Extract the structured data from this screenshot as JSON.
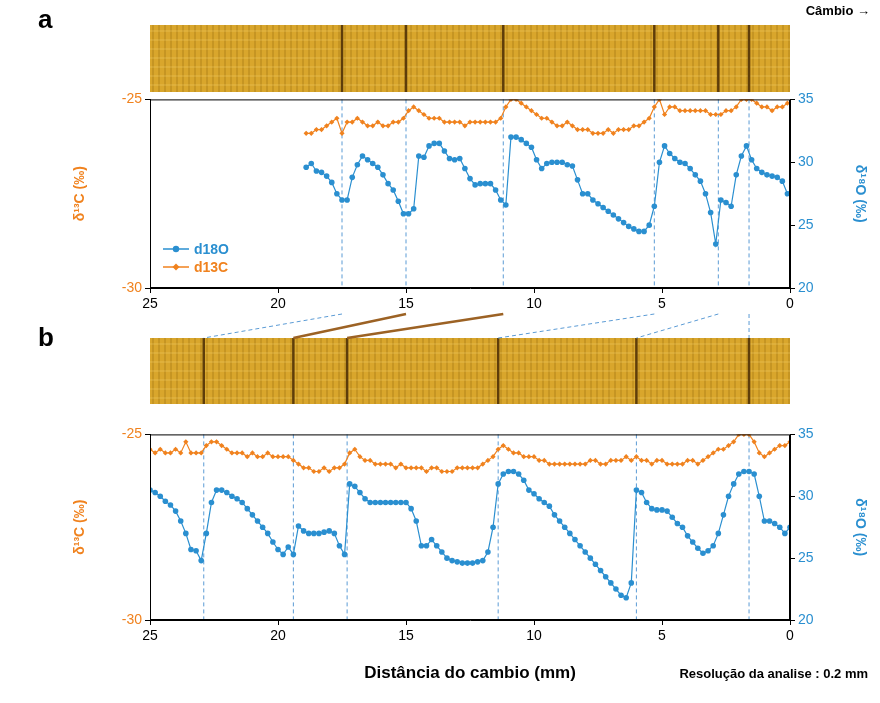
{
  "chart_data": [
    {
      "panel": "a",
      "type": "line",
      "annotation": "Câmbio →",
      "y_label": "δ¹³C (‰)",
      "y2_label": "δ¹⁸O (‰)",
      "xlim": [
        25,
        0
      ],
      "xticks": [
        0,
        5,
        10,
        15,
        20,
        25
      ],
      "ylim": [
        -30,
        -25
      ],
      "yticks": [
        -30,
        -25
      ],
      "y2lim": [
        20,
        35
      ],
      "y2ticks": [
        20,
        25,
        30,
        35
      ],
      "grid": false,
      "legend": "lower left",
      "ring_boundaries": [
        17.5,
        15.0,
        11.2,
        5.3,
        2.8,
        1.6
      ],
      "x": [
        18.9,
        18.7,
        18.5,
        18.3,
        18.1,
        17.9,
        17.7,
        17.5,
        17.3,
        17.1,
        16.9,
        16.7,
        16.5,
        16.3,
        16.1,
        15.9,
        15.7,
        15.5,
        15.3,
        15.1,
        14.9,
        14.7,
        14.5,
        14.3,
        14.1,
        13.9,
        13.7,
        13.5,
        13.3,
        13.1,
        12.9,
        12.7,
        12.5,
        12.3,
        12.1,
        11.9,
        11.7,
        11.5,
        11.3,
        11.1,
        10.9,
        10.7,
        10.5,
        10.3,
        10.1,
        9.9,
        9.7,
        9.5,
        9.3,
        9.1,
        8.9,
        8.7,
        8.5,
        8.3,
        8.1,
        7.9,
        7.7,
        7.5,
        7.3,
        7.1,
        6.9,
        6.7,
        6.5,
        6.3,
        6.1,
        5.9,
        5.7,
        5.5,
        5.3,
        5.1,
        4.9,
        4.7,
        4.5,
        4.3,
        4.1,
        3.9,
        3.7,
        3.5,
        3.3,
        3.1,
        2.9,
        2.7,
        2.5,
        2.3,
        2.1,
        1.9,
        1.7,
        1.5,
        1.3,
        1.1,
        0.9,
        0.7,
        0.5,
        0.3,
        0.1
      ],
      "series": [
        {
          "name": "d18O",
          "color": "#2a8fd0",
          "marker": "circle",
          "line_style": "solid",
          "axis": "y2",
          "values": [
            29.6,
            29.9,
            29.3,
            29.2,
            28.9,
            28.4,
            27.5,
            27.0,
            27.0,
            28.8,
            29.8,
            30.5,
            30.2,
            29.9,
            29.6,
            29.0,
            28.3,
            27.8,
            26.9,
            25.9,
            25.9,
            26.3,
            30.5,
            30.4,
            31.3,
            31.5,
            31.5,
            30.9,
            30.3,
            30.2,
            30.3,
            29.5,
            28.7,
            28.2,
            28.3,
            28.3,
            28.3,
            27.8,
            27.0,
            26.6,
            32.0,
            32.0,
            31.8,
            31.5,
            31.2,
            30.2,
            29.5,
            29.9,
            30.0,
            30.0,
            30.0,
            29.8,
            29.7,
            28.6,
            27.5,
            27.5,
            27.0,
            26.7,
            26.4,
            26.1,
            25.8,
            25.5,
            25.2,
            24.9,
            24.7,
            24.5,
            24.5,
            25.0,
            26.5,
            30.0,
            31.3,
            30.7,
            30.3,
            30.0,
            29.9,
            29.5,
            29.0,
            28.5,
            27.5,
            26.0,
            23.5,
            27.0,
            26.8,
            26.5,
            29.0,
            30.5,
            31.3,
            30.2,
            29.5,
            29.2,
            29.0,
            28.9,
            28.8,
            28.5,
            27.5
          ]
        },
        {
          "name": "d13C",
          "color": "#f0821e",
          "marker": "diamond",
          "line_style": "solid",
          "axis": "y",
          "values": [
            -25.9,
            -25.9,
            -25.8,
            -25.8,
            -25.7,
            -25.6,
            -25.5,
            -25.9,
            -25.6,
            -25.6,
            -25.5,
            -25.6,
            -25.7,
            -25.7,
            -25.6,
            -25.7,
            -25.7,
            -25.6,
            -25.6,
            -25.5,
            -25.3,
            -25.2,
            -25.3,
            -25.4,
            -25.5,
            -25.5,
            -25.5,
            -25.6,
            -25.6,
            -25.6,
            -25.6,
            -25.7,
            -25.6,
            -25.6,
            -25.6,
            -25.6,
            -25.6,
            -25.6,
            -25.5,
            -25.2,
            -25.0,
            -25.0,
            -25.1,
            -25.2,
            -25.3,
            -25.4,
            -25.5,
            -25.5,
            -25.6,
            -25.7,
            -25.7,
            -25.6,
            -25.7,
            -25.8,
            -25.8,
            -25.8,
            -25.9,
            -25.9,
            -25.9,
            -25.8,
            -25.9,
            -25.8,
            -25.8,
            -25.8,
            -25.7,
            -25.7,
            -25.6,
            -25.5,
            -25.2,
            -25.0,
            -25.4,
            -25.2,
            -25.2,
            -25.3,
            -25.3,
            -25.3,
            -25.3,
            -25.3,
            -25.3,
            -25.4,
            -25.4,
            -25.4,
            -25.3,
            -25.3,
            -25.2,
            -25.0,
            -25.0,
            -25.0,
            -25.1,
            -25.2,
            -25.2,
            -25.3,
            -25.2,
            -25.2,
            -25.1
          ]
        }
      ]
    },
    {
      "panel": "b",
      "type": "line",
      "annotation": "Resolução da analise : 0.2 mm",
      "x_label": "Distância do cambio (mm)",
      "y_label": "δ¹³C (‰)",
      "y2_label": "δ¹⁸O (‰)",
      "xlim": [
        25,
        0
      ],
      "xticks": [
        0,
        5,
        10,
        15,
        20,
        25
      ],
      "ylim": [
        -30,
        -25
      ],
      "yticks": [
        -30,
        -25
      ],
      "y2lim": [
        20,
        35
      ],
      "y2ticks": [
        20,
        25,
        30,
        35
      ],
      "grid": false,
      "ring_boundaries": [
        22.9,
        19.4,
        17.3,
        11.4,
        6.0,
        1.6
      ],
      "x": [
        25,
        24.8,
        24.6,
        24.4,
        24.2,
        24,
        23.8,
        23.6,
        23.4,
        23.2,
        23,
        22.8,
        22.6,
        22.4,
        22.2,
        22,
        21.8,
        21.6,
        21.4,
        21.2,
        21,
        20.8,
        20.6,
        20.4,
        20.2,
        20,
        19.8,
        19.6,
        19.4,
        19.2,
        19,
        18.8,
        18.6,
        18.4,
        18.2,
        18,
        17.8,
        17.6,
        17.4,
        17.2,
        17,
        16.8,
        16.6,
        16.4,
        16.2,
        16,
        15.8,
        15.6,
        15.4,
        15.2,
        15,
        14.8,
        14.6,
        14.4,
        14.2,
        14,
        13.8,
        13.6,
        13.4,
        13.2,
        13,
        12.8,
        12.6,
        12.4,
        12.2,
        12,
        11.8,
        11.6,
        11.4,
        11.2,
        11,
        10.8,
        10.6,
        10.4,
        10.2,
        10,
        9.8,
        9.6,
        9.4,
        9.2,
        9,
        8.8,
        8.6,
        8.4,
        8.2,
        8,
        7.8,
        7.6,
        7.4,
        7.2,
        7,
        6.8,
        6.6,
        6.4,
        6.2,
        6,
        5.8,
        5.6,
        5.4,
        5.2,
        5,
        4.8,
        4.6,
        4.4,
        4.2,
        4,
        3.8,
        3.6,
        3.4,
        3.2,
        3,
        2.8,
        2.6,
        2.4,
        2.2,
        2,
        1.8,
        1.6,
        1.4,
        1.2,
        1,
        0.8,
        0.6,
        0.4,
        0.2,
        0
      ],
      "series": [
        {
          "name": "d18O",
          "color": "#2a8fd0",
          "marker": "circle",
          "line_style": "solid",
          "axis": "y2",
          "values": [
            30.5,
            30.3,
            30.0,
            29.6,
            29.3,
            28.8,
            28.0,
            27.0,
            25.7,
            25.6,
            24.8,
            27.0,
            29.5,
            30.5,
            30.5,
            30.3,
            30.0,
            29.8,
            29.5,
            29.0,
            28.5,
            28.0,
            27.5,
            27.0,
            26.3,
            25.7,
            25.3,
            25.9,
            25.3,
            27.6,
            27.2,
            27.0,
            27.0,
            27.0,
            27.1,
            27.2,
            27.0,
            26.0,
            25.3,
            31.0,
            30.8,
            30.3,
            29.8,
            29.5,
            29.5,
            29.5,
            29.5,
            29.5,
            29.5,
            29.5,
            29.5,
            29.0,
            28.0,
            26.0,
            26.0,
            26.5,
            26.0,
            25.5,
            25.0,
            24.8,
            24.7,
            24.6,
            24.6,
            24.6,
            24.7,
            24.8,
            25.5,
            27.5,
            31.0,
            31.8,
            32.0,
            32.0,
            31.8,
            31.3,
            30.5,
            30.2,
            29.8,
            29.5,
            29.2,
            28.5,
            28.0,
            27.5,
            27.0,
            26.5,
            26.0,
            25.5,
            25.0,
            24.5,
            24.0,
            23.5,
            23.0,
            22.5,
            22.0,
            21.8,
            23.0,
            30.5,
            30.3,
            29.5,
            29.0,
            28.9,
            28.9,
            28.8,
            28.3,
            27.8,
            27.5,
            26.8,
            26.3,
            25.8,
            25.4,
            25.6,
            26.0,
            27.0,
            28.5,
            30.0,
            31.0,
            31.8,
            32.0,
            32.0,
            31.8,
            30.0,
            28.0,
            28.0,
            27.8,
            27.5,
            27.0,
            27.5
          ]
        },
        {
          "name": "d13C",
          "color": "#f0821e",
          "marker": "diamond",
          "line_style": "solid",
          "axis": "y",
          "values": [
            -25.4,
            -25.5,
            -25.4,
            -25.5,
            -25.5,
            -25.4,
            -25.5,
            -25.2,
            -25.5,
            -25.5,
            -25.5,
            -25.3,
            -25.2,
            -25.2,
            -25.3,
            -25.4,
            -25.5,
            -25.5,
            -25.5,
            -25.6,
            -25.5,
            -25.6,
            -25.6,
            -25.5,
            -25.6,
            -25.6,
            -25.6,
            -25.6,
            -25.7,
            -25.8,
            -25.9,
            -25.9,
            -26.0,
            -26.0,
            -25.9,
            -26.0,
            -25.9,
            -25.9,
            -25.8,
            -25.5,
            -25.4,
            -25.6,
            -25.7,
            -25.7,
            -25.8,
            -25.8,
            -25.8,
            -25.8,
            -25.9,
            -25.8,
            -25.9,
            -25.9,
            -25.9,
            -25.9,
            -26.0,
            -25.9,
            -25.9,
            -26.0,
            -26.0,
            -26.0,
            -25.9,
            -25.9,
            -25.9,
            -25.9,
            -25.9,
            -25.8,
            -25.7,
            -25.6,
            -25.4,
            -25.3,
            -25.4,
            -25.5,
            -25.5,
            -25.6,
            -25.6,
            -25.6,
            -25.7,
            -25.7,
            -25.8,
            -25.8,
            -25.8,
            -25.8,
            -25.8,
            -25.8,
            -25.8,
            -25.8,
            -25.7,
            -25.7,
            -25.8,
            -25.8,
            -25.7,
            -25.7,
            -25.7,
            -25.6,
            -25.7,
            -25.6,
            -25.7,
            -25.7,
            -25.8,
            -25.7,
            -25.7,
            -25.8,
            -25.8,
            -25.8,
            -25.8,
            -25.7,
            -25.7,
            -25.8,
            -25.7,
            -25.6,
            -25.5,
            -25.4,
            -25.4,
            -25.3,
            -25.2,
            -25.0,
            -25.0,
            -25.0,
            -25.2,
            -25.5,
            -25.6,
            -25.5,
            -25.4,
            -25.3,
            -25.3,
            -25.2
          ]
        }
      ]
    }
  ],
  "ring_links": [
    {
      "line_style": "dashed",
      "color": "#5b9bd5"
    },
    {
      "line_style": "solid",
      "color": "#9c6224"
    },
    {
      "line_style": "solid",
      "color": "#9c6224"
    },
    {
      "line_style": "dashed",
      "color": "#5b9bd5"
    },
    {
      "line_style": "dashed",
      "color": "#5b9bd5"
    },
    {
      "line_style": "dashed",
      "color": "#5b9bd5"
    }
  ]
}
